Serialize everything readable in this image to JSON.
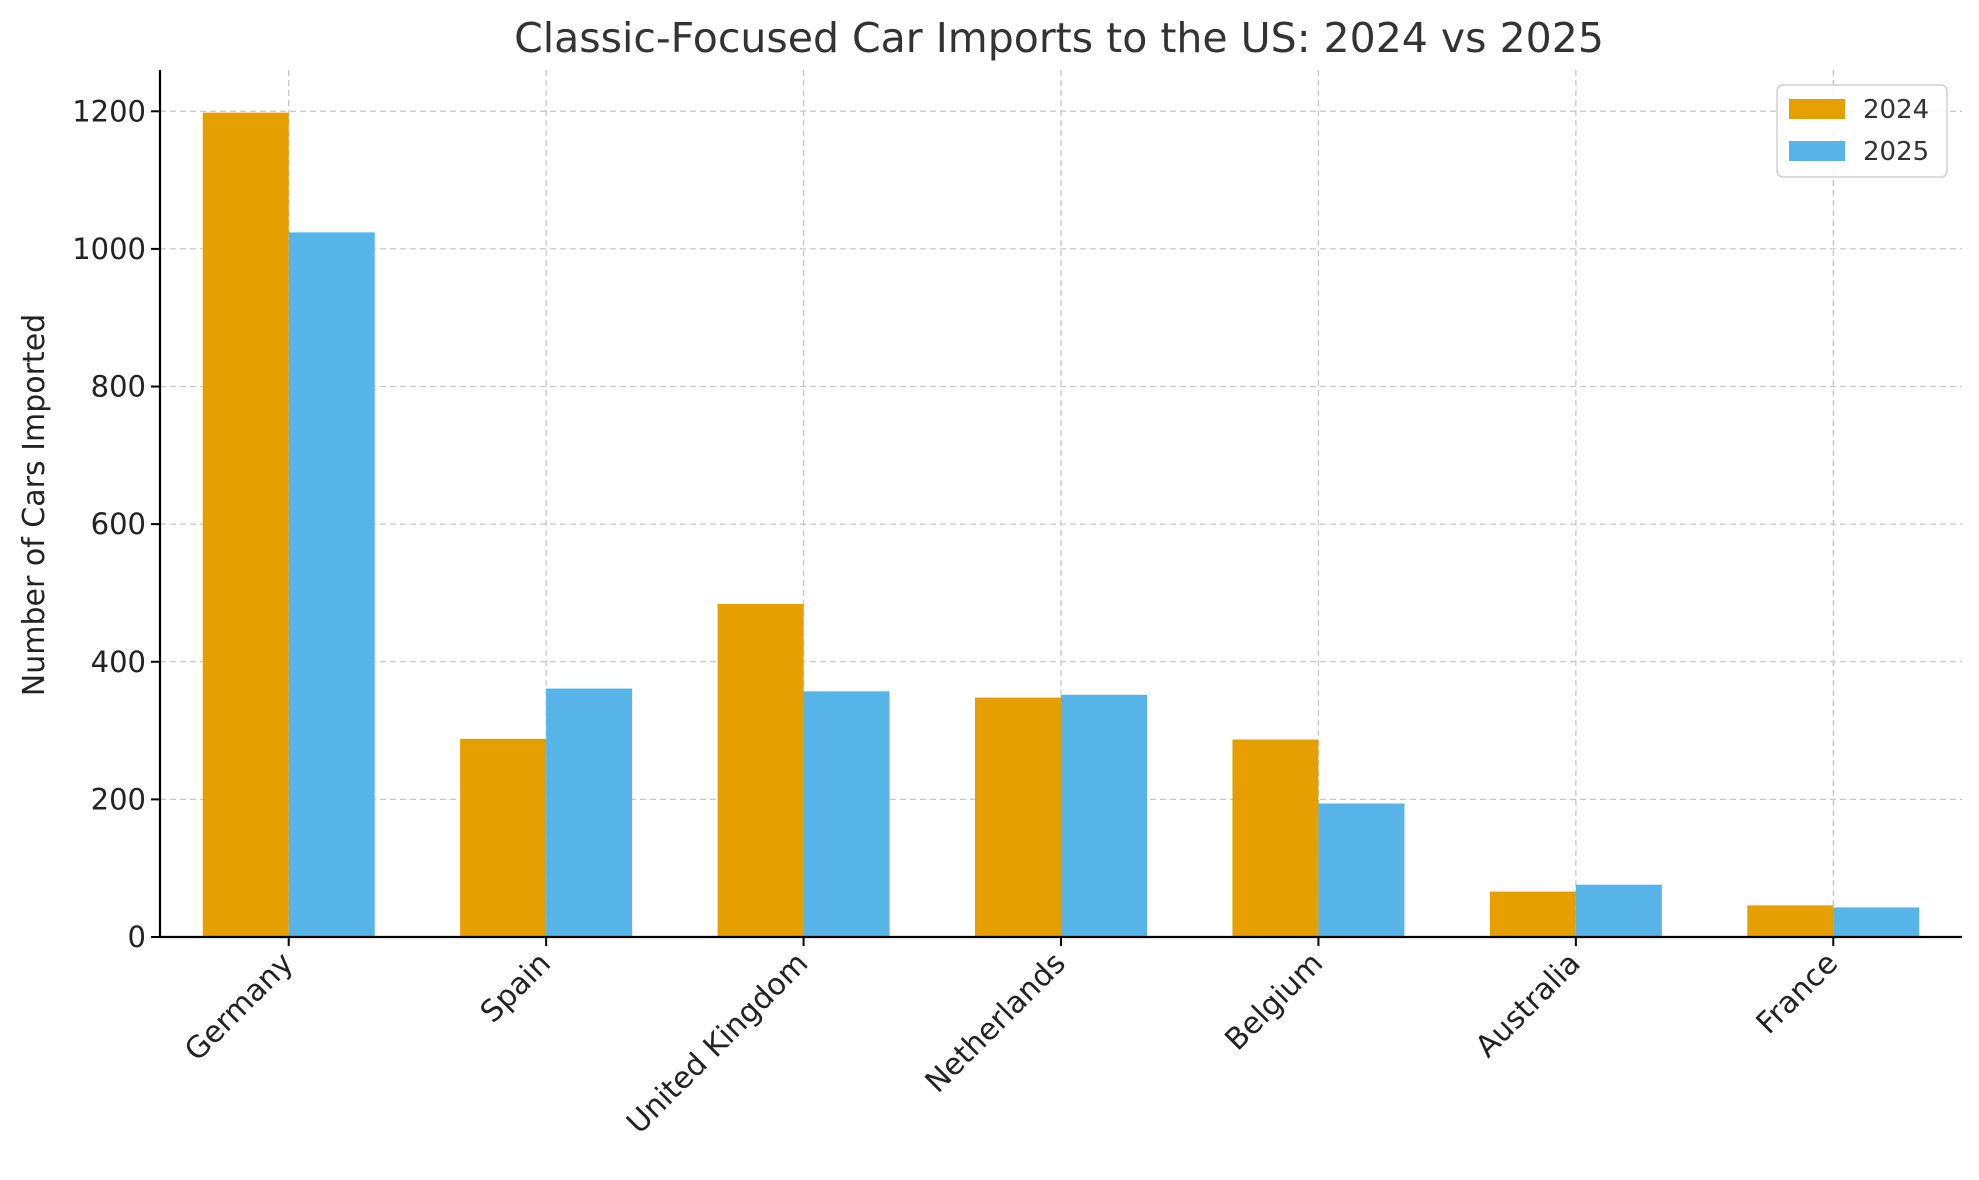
{
  "chart_data": {
    "type": "bar",
    "title": "Classic-Focused Car Imports to the US: 2024 vs 2025",
    "xlabel": "",
    "ylabel": "Number of Cars Imported",
    "categories": [
      "Germany",
      "Spain",
      "United Kingdom",
      "Netherlands",
      "Belgium",
      "Australia",
      "France"
    ],
    "series": [
      {
        "name": "2024",
        "color": "#E69F00",
        "values": [
          1198,
          288,
          484,
          348,
          287,
          66,
          46
        ]
      },
      {
        "name": "2025",
        "color": "#56B4E9",
        "values": [
          1024,
          361,
          357,
          352,
          194,
          76,
          43
        ]
      }
    ],
    "ylim": [
      0,
      1260
    ],
    "yticks": [
      0,
      200,
      400,
      600,
      800,
      1000,
      1200
    ],
    "grid": true,
    "legend_position": "top-right"
  }
}
